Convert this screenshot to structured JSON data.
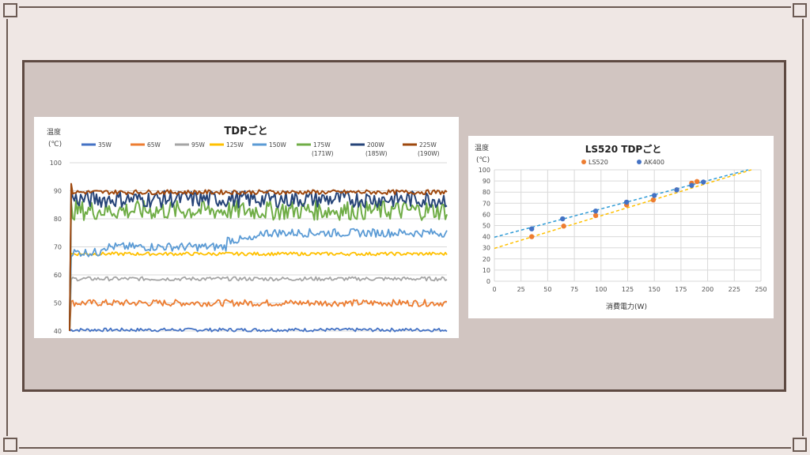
{
  "chart_data": [
    {
      "type": "line",
      "title": "TDPごと",
      "ylabel": "温度\n(℃)",
      "xlabel": "",
      "ylim": [
        40,
        100
      ],
      "yticks": [
        40,
        50,
        60,
        70,
        80,
        90,
        100
      ],
      "grid": true,
      "legend_position": "top",
      "series": [
        {
          "name": "35W",
          "color": "#4472c4",
          "base": 40.4,
          "noise": 0.6
        },
        {
          "name": "65W",
          "color": "#ed7d31",
          "base": 50,
          "noise": 1.2
        },
        {
          "name": "95W",
          "color": "#a5a5a5",
          "base": 58.6,
          "noise": 0.7
        },
        {
          "name": "125W",
          "color": "#ffc000",
          "base": 67.5,
          "noise": 0.6
        },
        {
          "name": "150W",
          "color": "#5b9bd5",
          "base": 72,
          "noise": 1.5
        },
        {
          "name": "175W\n(171W)",
          "color": "#70ad47",
          "base": 83,
          "noise": 3.5
        },
        {
          "name": "200W\n(185W)",
          "color": "#264478",
          "base": 87,
          "noise": 3
        },
        {
          "name": "225W\n(190W)",
          "color": "#9e480e",
          "base": 89.5,
          "noise": 0.8
        }
      ]
    },
    {
      "type": "scatter",
      "title": "LS520 TDPごと",
      "ylabel": "温度\n(℃)",
      "xlabel": "消費電力(W)",
      "xlim": [
        0,
        250
      ],
      "ylim": [
        0,
        100
      ],
      "xticks": [
        0,
        25,
        50,
        75,
        100,
        125,
        150,
        175,
        200,
        225,
        250
      ],
      "yticks": [
        0,
        10,
        20,
        30,
        40,
        50,
        60,
        70,
        80,
        90,
        100
      ],
      "grid": true,
      "legend_position": "top",
      "series": [
        {
          "name": "LS520",
          "color": "#ed7d31",
          "points": [
            [
              35,
              40
            ],
            [
              65,
              49.5
            ],
            [
              95,
              59
            ],
            [
              124,
              68.5
            ],
            [
              149,
              73
            ],
            [
              171,
              82
            ],
            [
              185,
              88
            ],
            [
              190,
              89.5
            ]
          ],
          "trendline": [
            [
              0,
              29.5
            ],
            [
              241,
              100
            ]
          ]
        },
        {
          "name": "AK400",
          "color": "#4472c4",
          "points": [
            [
              35,
              47
            ],
            [
              64,
              56
            ],
            [
              95,
              63
            ],
            [
              124,
              71
            ],
            [
              150,
              77
            ],
            [
              171,
              82
            ],
            [
              185,
              86
            ],
            [
              196,
              89
            ]
          ],
          "trendline": [
            [
              0,
              39.5
            ],
            [
              238,
              100
            ]
          ]
        }
      ]
    }
  ]
}
